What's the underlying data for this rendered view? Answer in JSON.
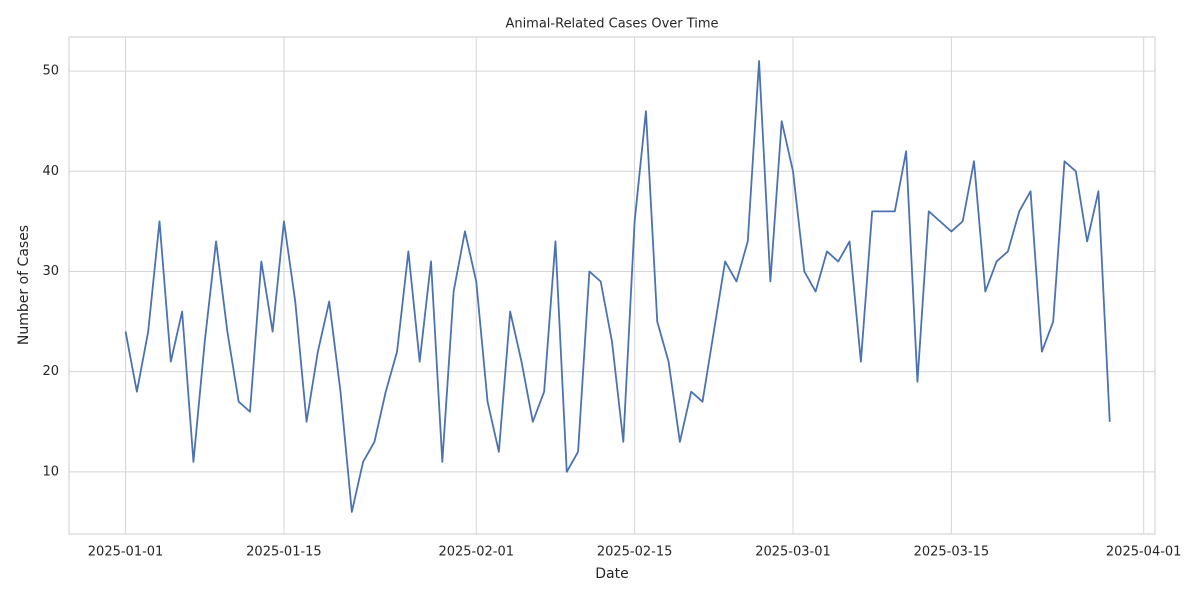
{
  "chart_data": {
    "type": "line",
    "title": "Animal-Related Cases Over Time",
    "xlabel": "Date",
    "ylabel": "Number of Cases",
    "x": [
      "2025-01-01",
      "2025-01-02",
      "2025-01-03",
      "2025-01-04",
      "2025-01-05",
      "2025-01-06",
      "2025-01-07",
      "2025-01-08",
      "2025-01-09",
      "2025-01-10",
      "2025-01-11",
      "2025-01-12",
      "2025-01-13",
      "2025-01-14",
      "2025-01-15",
      "2025-01-16",
      "2025-01-17",
      "2025-01-18",
      "2025-01-19",
      "2025-01-20",
      "2025-01-21",
      "2025-01-22",
      "2025-01-23",
      "2025-01-24",
      "2025-01-25",
      "2025-01-26",
      "2025-01-27",
      "2025-01-28",
      "2025-01-29",
      "2025-01-30",
      "2025-01-31",
      "2025-02-01",
      "2025-02-02",
      "2025-02-03",
      "2025-02-04",
      "2025-02-05",
      "2025-02-06",
      "2025-02-07",
      "2025-02-08",
      "2025-02-09",
      "2025-02-10",
      "2025-02-11",
      "2025-02-12",
      "2025-02-13",
      "2025-02-14",
      "2025-02-15",
      "2025-02-16",
      "2025-02-17",
      "2025-02-18",
      "2025-02-19",
      "2025-02-20",
      "2025-02-21",
      "2025-02-22",
      "2025-02-23",
      "2025-02-24",
      "2025-02-25",
      "2025-02-26",
      "2025-02-27",
      "2025-02-28",
      "2025-03-01",
      "2025-03-02",
      "2025-03-03",
      "2025-03-04",
      "2025-03-05",
      "2025-03-06",
      "2025-03-07",
      "2025-03-08",
      "2025-03-09",
      "2025-03-10",
      "2025-03-11",
      "2025-03-12",
      "2025-03-13",
      "2025-03-14",
      "2025-03-15",
      "2025-03-16",
      "2025-03-17",
      "2025-03-18",
      "2025-03-19",
      "2025-03-20",
      "2025-03-21",
      "2025-03-22",
      "2025-03-23",
      "2025-03-24",
      "2025-03-25",
      "2025-03-26",
      "2025-03-27",
      "2025-03-28",
      "2025-03-29"
    ],
    "series": [
      {
        "name": "Number of Cases",
        "color": "#4c72b0",
        "values": [
          24,
          18,
          24,
          35,
          21,
          26,
          11,
          23,
          33,
          24,
          17,
          16,
          31,
          24,
          35,
          27,
          15,
          22,
          27,
          18,
          6,
          11,
          13,
          18,
          22,
          32,
          21,
          31,
          11,
          28,
          34,
          29,
          17,
          12,
          26,
          21,
          15,
          18,
          33,
          10,
          12,
          30,
          29,
          23,
          13,
          35,
          46,
          25,
          21,
          13,
          18,
          17,
          24,
          31,
          29,
          33,
          51,
          29,
          45,
          40,
          30,
          28,
          32,
          31,
          33,
          21,
          36,
          36,
          36,
          42,
          19,
          36,
          35,
          34,
          35,
          41,
          28,
          31,
          32,
          36,
          38,
          22,
          25,
          41,
          40,
          33,
          38,
          15
        ]
      }
    ],
    "xlim": [
      "2024-12-27",
      "2025-04-02"
    ],
    "xticks": [
      "2025-01-01",
      "2025-01-15",
      "2025-02-01",
      "2025-02-15",
      "2025-03-01",
      "2025-03-15",
      "2025-04-01"
    ],
    "ylim": [
      3.8,
      53.4
    ],
    "yticks": [
      10,
      20,
      30,
      40,
      50
    ],
    "grid": true
  }
}
